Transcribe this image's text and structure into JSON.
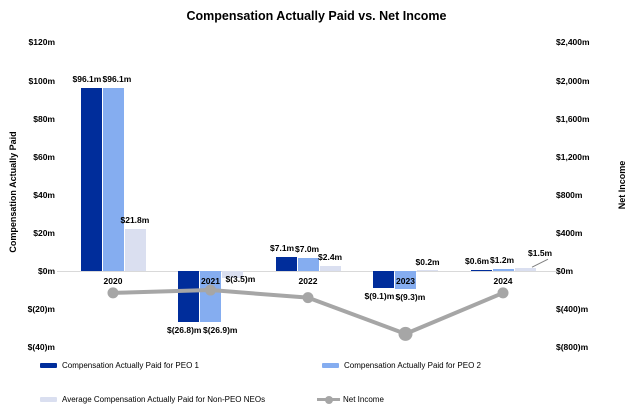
{
  "title": "Compensation Actually Paid vs. Net Income",
  "left_axis": {
    "title": "Compensation Actually Paid",
    "ticks": [
      {
        "label": "$120m",
        "value": 120
      },
      {
        "label": "$100m",
        "value": 100
      },
      {
        "label": "$80m",
        "value": 80
      },
      {
        "label": "$60m",
        "value": 60
      },
      {
        "label": "$40m",
        "value": 40
      },
      {
        "label": "$20m",
        "value": 20
      },
      {
        "label": "$0m",
        "value": 0
      },
      {
        "label": "$(20)m",
        "value": -20
      },
      {
        "label": "$(40)m",
        "value": -40
      }
    ]
  },
  "right_axis": {
    "title": "Net Income",
    "ticks": [
      {
        "label": "$2,400m",
        "value": 2400
      },
      {
        "label": "$2,000m",
        "value": 2000
      },
      {
        "label": "$1,600m",
        "value": 1600
      },
      {
        "label": "$1,200m",
        "value": 1200
      },
      {
        "label": "$800m",
        "value": 800
      },
      {
        "label": "$400m",
        "value": 400
      },
      {
        "label": "$0m",
        "value": 0
      },
      {
        "label": "$(400)m",
        "value": -400
      },
      {
        "label": "$(800)m",
        "value": -800
      }
    ]
  },
  "chart_data": {
    "type": "combo-bar-line",
    "categories": [
      "2020",
      "2021",
      "2022",
      "2023",
      "2024"
    ],
    "series": [
      {
        "name": "Compensation Actually Paid for PEO 1",
        "type": "bar",
        "axis": "left",
        "color": "#002d9b",
        "values": [
          96.1,
          -26.8,
          7.1,
          -9.1,
          0.6
        ],
        "labels": [
          "$96.1m",
          "$(26.8)m",
          "$7.1m",
          "$(9.1)m",
          "$0.6m"
        ]
      },
      {
        "name": "Compensation Actually Paid for PEO 2",
        "type": "bar",
        "axis": "left",
        "color": "#85adf0",
        "values": [
          96.1,
          -26.9,
          7.0,
          -9.3,
          1.2
        ],
        "labels": [
          "$96.1m",
          "$(26.9)m",
          "$7.0m",
          "$(9.3)m",
          "$1.2m"
        ]
      },
      {
        "name": "Average Compensation Actually Paid for Non-PEO NEOs",
        "type": "bar",
        "axis": "left",
        "color": "#dadff0",
        "values": [
          21.8,
          -3.5,
          2.4,
          0.2,
          1.5
        ],
        "labels": [
          "$21.8m",
          "$(3.5)m",
          "$2.4m",
          "$0.2m",
          "$1.5m"
        ]
      },
      {
        "name": "Net Income",
        "type": "line",
        "axis": "right",
        "color": "#a6a6a6",
        "values": [
          -230,
          -200,
          -280,
          -660,
          -230
        ]
      }
    ],
    "left_ylim": [
      -40,
      120
    ],
    "right_ylim": [
      -800,
      2400
    ],
    "gridlines": "zero-line-only",
    "legend_position": "bottom"
  },
  "legend": {
    "items": [
      {
        "label": "Compensation Actually Paid for PEO 1",
        "swatch": "bar",
        "color": "#002d9b"
      },
      {
        "label": "Compensation Actually Paid for PEO 2",
        "swatch": "bar",
        "color": "#85adf0"
      },
      {
        "label": "Average Compensation Actually Paid for Non-PEO NEOs",
        "swatch": "bar",
        "color": "#dadff0"
      },
      {
        "label": "Net Income",
        "swatch": "line",
        "color": "#a6a6a6"
      }
    ]
  }
}
